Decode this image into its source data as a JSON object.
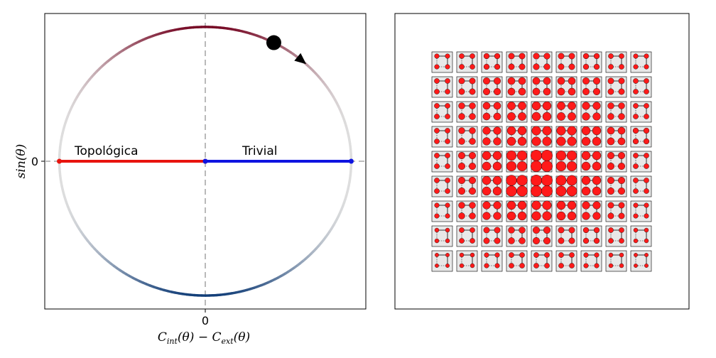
{
  "chart_data": [
    {
      "type": "line",
      "title": "",
      "xlabel": "C_int(θ) − C_ext(θ)",
      "xlabel_main": "C",
      "xlabel_sub1": "int",
      "xlabel_mid": "(θ) − C",
      "xlabel_sub2": "ext",
      "xlabel_end": "(θ)",
      "ylabel": "sin(θ)",
      "xticks": [
        "0"
      ],
      "yticks": [
        "0"
      ],
      "xlim": [
        -1.1,
        1.1
      ],
      "ylim": [
        -1.1,
        1.1
      ],
      "grid": false,
      "reference_lines": {
        "x": 0,
        "y": 0,
        "style": "dashed",
        "color": "#a8a8a8"
      },
      "circle": {
        "cx": 0,
        "cy": 0,
        "r": 1,
        "colormap": "RdBu (top red, bottom blue, faded gray sides)"
      },
      "marker": {
        "angle_deg": 62,
        "color": "#000000"
      },
      "arrow": {
        "angle_deg": 48,
        "color": "#000000"
      },
      "series": [
        {
          "name": "Topológica",
          "x": [
            -1,
            0
          ],
          "y": [
            0,
            0
          ],
          "color": "#e8140e"
        },
        {
          "name": "Trivial",
          "x": [
            0,
            1
          ],
          "y": [
            0,
            0
          ],
          "color": "#0e14e0"
        }
      ],
      "annotations": [
        {
          "text": "Topológica",
          "x": -0.88,
          "y": 0.06
        },
        {
          "text": "Trivial",
          "x": 0.26,
          "y": 0.06
        }
      ]
    },
    {
      "type": "heatmap",
      "title": "",
      "description_rows": 9,
      "description_cols": 9,
      "cell_color": "#e8e8e8",
      "dot_color": "#ff1a1a",
      "dot_edge_color": "#000000",
      "intensity": [
        [
          0.25,
          0.3,
          0.35,
          0.4,
          0.42,
          0.4,
          0.35,
          0.3,
          0.25
        ],
        [
          0.3,
          0.4,
          0.5,
          0.55,
          0.55,
          0.55,
          0.5,
          0.4,
          0.3
        ],
        [
          0.3,
          0.45,
          0.55,
          0.65,
          0.7,
          0.65,
          0.6,
          0.45,
          0.3
        ],
        [
          0.3,
          0.45,
          0.6,
          0.7,
          0.75,
          0.75,
          0.7,
          0.55,
          0.35
        ],
        [
          0.3,
          0.5,
          0.7,
          0.85,
          1.0,
          0.85,
          0.7,
          0.5,
          0.3
        ],
        [
          0.3,
          0.5,
          0.7,
          0.95,
          1.0,
          0.9,
          0.7,
          0.5,
          0.3
        ],
        [
          0.25,
          0.45,
          0.6,
          0.7,
          0.75,
          0.7,
          0.6,
          0.4,
          0.25
        ],
        [
          0.2,
          0.3,
          0.4,
          0.45,
          0.5,
          0.4,
          0.35,
          0.3,
          0.2
        ],
        [
          0.15,
          0.2,
          0.25,
          0.3,
          0.3,
          0.3,
          0.25,
          0.2,
          0.15
        ]
      ]
    }
  ]
}
